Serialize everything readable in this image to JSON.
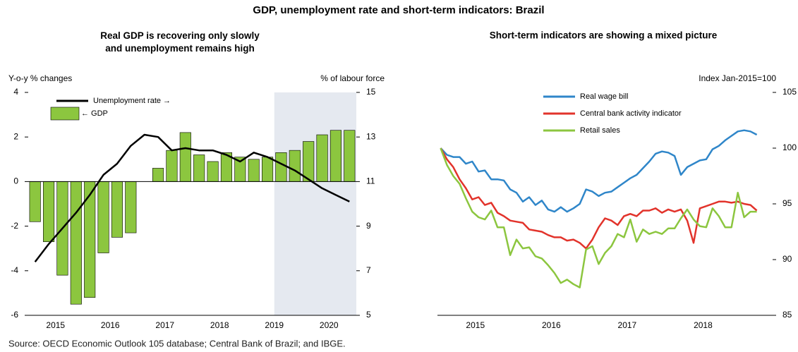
{
  "title": "GDP, unemployment rate and short-term indicators: Brazil",
  "source": "Source: OECD Economic Outlook 105 database; Central Bank of Brazil; and IBGE.",
  "chart_data": [
    {
      "type": "bar",
      "title": "Real GDP is recovering only slowly and unemployment remains high",
      "ylabel": "Y-o-y % changes",
      "y2label": "% of labour force",
      "categories": [
        null,
        null,
        "2015",
        null,
        null,
        null,
        "2016",
        null,
        null,
        null,
        "2017",
        null,
        null,
        null,
        "2018",
        null,
        null,
        null,
        "2019",
        null,
        null,
        null,
        "2020",
        null
      ],
      "series": [
        {
          "name": "← GDP",
          "type": "bar",
          "color": "#8cc63f",
          "values": [
            -1.8,
            -2.7,
            -4.2,
            -5.5,
            -5.2,
            -3.2,
            -2.5,
            -2.3,
            0.0,
            0.6,
            1.4,
            2.2,
            1.2,
            0.9,
            1.3,
            1.1,
            1.0,
            1.1,
            1.3,
            1.4,
            1.8,
            2.1,
            2.3,
            2.3
          ]
        },
        {
          "name": "Unemployment rate →",
          "type": "line",
          "axis": "y2",
          "color": "#000000",
          "values": [
            7.4,
            8.2,
            8.9,
            9.6,
            10.4,
            11.3,
            11.8,
            12.6,
            13.1,
            13.0,
            12.4,
            12.5,
            12.4,
            12.4,
            12.2,
            11.9,
            12.3,
            12.1,
            11.8,
            11.5,
            11.1,
            10.7,
            10.4,
            10.1
          ]
        }
      ],
      "ylim": [
        -6,
        4
      ],
      "yticks": [
        -6,
        -4,
        -2,
        0,
        2,
        4
      ],
      "y2lim": [
        5,
        15
      ],
      "y2ticks": [
        5,
        7,
        9,
        11,
        13,
        15
      ]
    },
    {
      "type": "line",
      "title": "Short-term indicators are showing a mixed picture",
      "y2label": "Index Jan-2015=100",
      "categories": [
        null,
        null,
        null,
        null,
        null,
        null,
        "2015",
        null,
        null,
        null,
        null,
        null,
        null,
        null,
        null,
        null,
        null,
        null,
        "2016",
        null,
        null,
        null,
        null,
        null,
        null,
        null,
        null,
        null,
        null,
        null,
        "2017",
        null,
        null,
        null,
        null,
        null,
        null,
        null,
        null,
        null,
        null,
        null,
        "2018",
        null,
        null,
        null,
        null,
        null,
        null,
        null,
        null
      ],
      "series": [
        {
          "name": "Real wage bill",
          "axis": "y2",
          "color": "#2f86c9",
          "values": [
            100,
            99.4,
            99.2,
            99.2,
            98.6,
            98.8,
            97.9,
            98.0,
            97.2,
            97.2,
            97.1,
            96.3,
            96.0,
            95.2,
            95.6,
            94.9,
            95.3,
            94.5,
            94.3,
            94.7,
            94.3,
            94.6,
            95.0,
            96.3,
            96.1,
            95.7,
            96.0,
            96.1,
            96.5,
            96.9,
            97.3,
            97.6,
            98.2,
            98.8,
            99.5,
            99.7,
            99.6,
            99.3,
            97.6,
            98.3,
            98.6,
            98.9,
            99.0,
            99.9,
            100.2,
            100.7,
            101.1,
            101.5,
            101.6,
            101.5,
            101.2
          ]
        },
        {
          "name": "Central bank activity indicator",
          "axis": "y2",
          "color": "#e2332b",
          "values": [
            100,
            99.0,
            98.3,
            97.2,
            96.4,
            95.4,
            95.6,
            94.9,
            95.1,
            94.2,
            93.9,
            93.5,
            93.4,
            93.3,
            92.7,
            92.6,
            92.5,
            92.2,
            92.0,
            92.0,
            91.7,
            91.8,
            91.5,
            91.0,
            91.8,
            92.9,
            93.7,
            93.5,
            93.1,
            93.9,
            94.1,
            93.9,
            94.4,
            94.4,
            94.6,
            94.2,
            94.5,
            94.3,
            94.5,
            93.5,
            91.5,
            94.6,
            94.8,
            95.0,
            95.2,
            95.2,
            95.1,
            95.2,
            95.0,
            94.9,
            94.4
          ]
        },
        {
          "name": "Retail sales",
          "axis": "y2",
          "color": "#8cc63f",
          "values": [
            100,
            98.5,
            97.5,
            96.8,
            95.5,
            94.3,
            93.8,
            93.6,
            94.4,
            92.9,
            92.9,
            90.4,
            91.8,
            91.0,
            91.1,
            90.3,
            90.1,
            89.5,
            88.8,
            87.9,
            88.2,
            87.8,
            87.5,
            90.9,
            91.2,
            89.6,
            90.6,
            91.2,
            92.3,
            92.0,
            93.6,
            91.6,
            92.7,
            92.3,
            92.5,
            92.3,
            92.8,
            92.8,
            93.7,
            94.5,
            93.6,
            93.0,
            92.9,
            94.6,
            93.9,
            92.9,
            92.9,
            96.0,
            93.8,
            94.3,
            94.3
          ]
        }
      ],
      "y2lim": [
        85,
        105
      ],
      "y2ticks": [
        85,
        90,
        95,
        100,
        105
      ]
    }
  ]
}
